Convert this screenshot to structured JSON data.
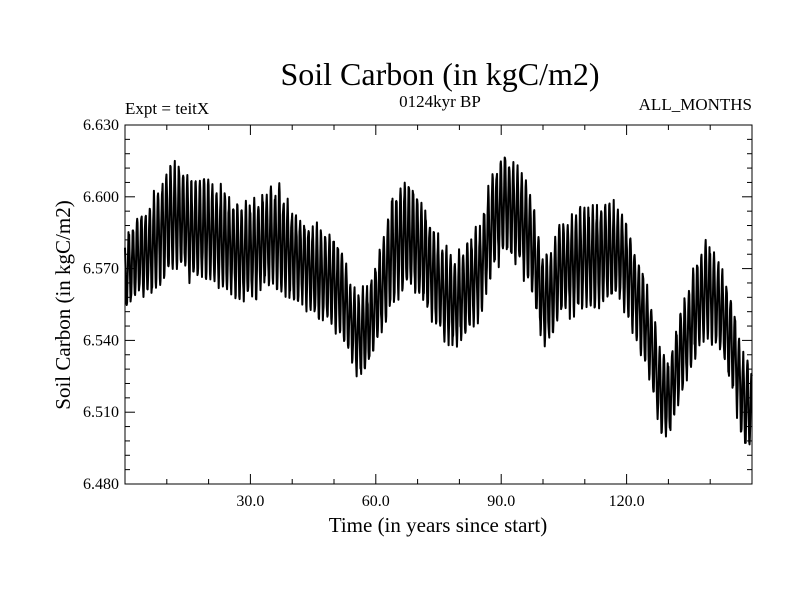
{
  "chart_data": {
    "type": "line",
    "title": "Soil Carbon (in kgC/m2)",
    "subtitle_left": "Expt = teitX",
    "subtitle_center": "0124kyr BP",
    "subtitle_right": "ALL_MONTHS",
    "xlabel": "Time (in years since start)",
    "ylabel": "Soil Carbon (in kgC/m2)",
    "xlim": [
      0,
      150
    ],
    "ylim": [
      6.48,
      6.63
    ],
    "x_ticks": [
      {
        "value": 30,
        "label": "30.0"
      },
      {
        "value": 60,
        "label": "60.0"
      },
      {
        "value": 90,
        "label": "90.0"
      },
      {
        "value": 120,
        "label": "120.0"
      }
    ],
    "y_ticks": [
      {
        "value": 6.48,
        "label": "6.480"
      },
      {
        "value": 6.51,
        "label": "6.510"
      },
      {
        "value": 6.54,
        "label": "6.540"
      },
      {
        "value": 6.57,
        "label": "6.570"
      },
      {
        "value": 6.6,
        "label": "6.600"
      },
      {
        "value": 6.63,
        "label": "6.630"
      }
    ],
    "series": [
      {
        "name": "Soil Carbon",
        "color": "#000000",
        "seasonal_cycle": "one full oscillation per year (monthly values)",
        "x": [
          0,
          3,
          6,
          10,
          13,
          16,
          19,
          22,
          25,
          28,
          31,
          34,
          37,
          40,
          43,
          46,
          49,
          52,
          54,
          56,
          58,
          61,
          64,
          67,
          70,
          73,
          76,
          79,
          82,
          85,
          88,
          91,
          94,
          97,
          100,
          102,
          104,
          107,
          110,
          113,
          116,
          119,
          122,
          125,
          128,
          130,
          133,
          136,
          139,
          142,
          145,
          148,
          150
        ],
        "center": [
          6.568,
          6.575,
          6.577,
          6.59,
          6.592,
          6.585,
          6.587,
          6.584,
          6.58,
          6.576,
          6.578,
          6.583,
          6.582,
          6.576,
          6.572,
          6.568,
          6.566,
          6.56,
          6.548,
          6.542,
          6.545,
          6.56,
          6.578,
          6.584,
          6.58,
          6.57,
          6.56,
          6.555,
          6.562,
          6.57,
          6.59,
          6.598,
          6.592,
          6.582,
          6.556,
          6.56,
          6.57,
          6.572,
          6.575,
          6.575,
          6.578,
          6.575,
          6.56,
          6.545,
          6.52,
          6.515,
          6.535,
          6.55,
          6.562,
          6.555,
          6.54,
          6.515,
          6.512
        ],
        "amplitude": [
          0.014,
          0.016,
          0.018,
          0.022,
          0.02,
          0.02,
          0.02,
          0.02,
          0.02,
          0.019,
          0.02,
          0.02,
          0.021,
          0.018,
          0.018,
          0.018,
          0.018,
          0.018,
          0.016,
          0.017,
          0.017,
          0.018,
          0.022,
          0.022,
          0.02,
          0.019,
          0.018,
          0.018,
          0.018,
          0.018,
          0.02,
          0.02,
          0.02,
          0.02,
          0.018,
          0.018,
          0.019,
          0.02,
          0.02,
          0.02,
          0.02,
          0.019,
          0.018,
          0.017,
          0.017,
          0.016,
          0.018,
          0.018,
          0.019,
          0.018,
          0.018,
          0.018,
          0.016
        ]
      }
    ]
  }
}
